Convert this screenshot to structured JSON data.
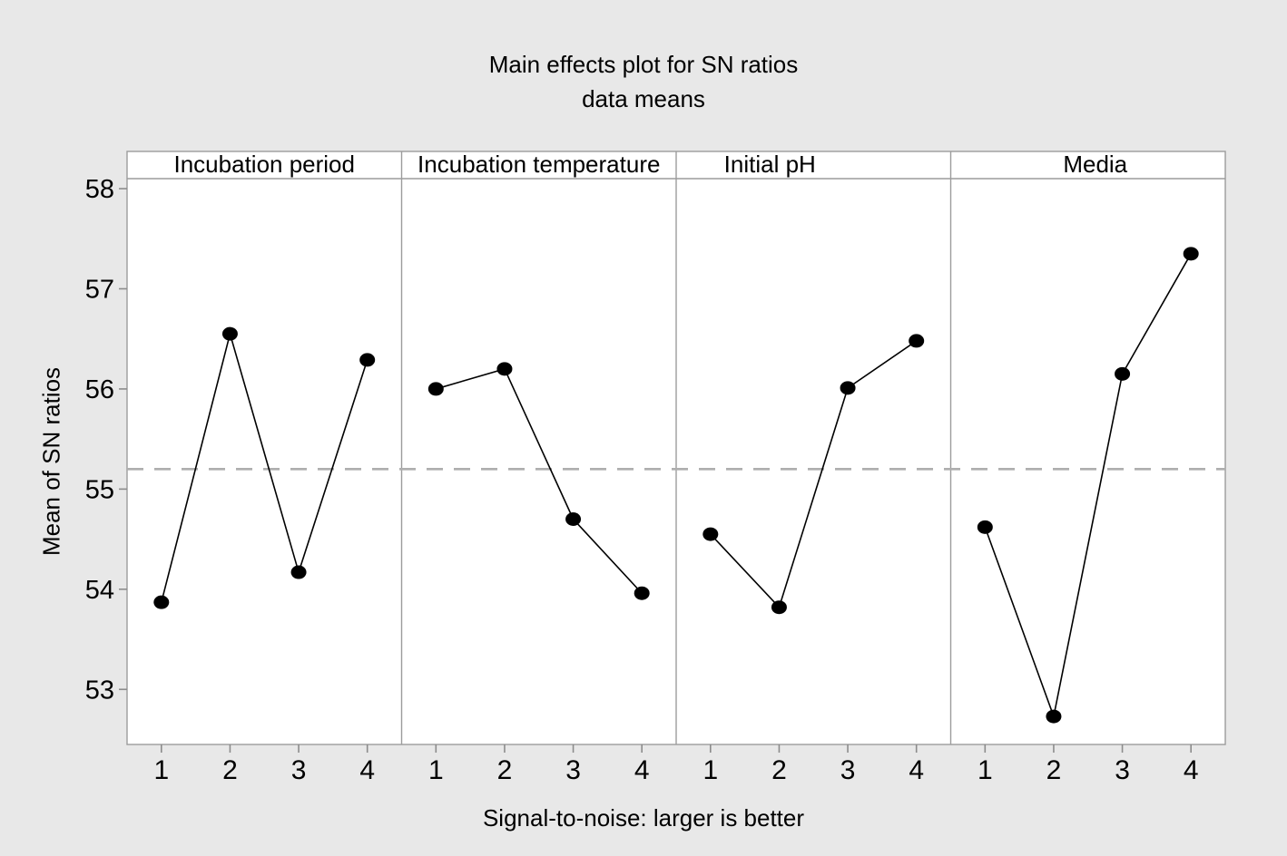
{
  "chart_data": {
    "type": "line",
    "title": "Main effects plot for SN ratios",
    "subtitle": "data means",
    "ylabel": "Mean of SN ratios",
    "xlabel": "Signal-to-noise: larger is better",
    "categories": [
      "1",
      "2",
      "3",
      "4"
    ],
    "yticks": [
      53,
      54,
      55,
      56,
      57,
      58
    ],
    "ylim": [
      52.45,
      58.1
    ],
    "reference_line": 55.2,
    "grid": "off",
    "legend_position": "none",
    "panels": [
      {
        "label": "Incubation period",
        "values": [
          53.87,
          56.55,
          54.17,
          56.29
        ]
      },
      {
        "label": "Incubation temperature",
        "values": [
          56.0,
          56.2,
          54.7,
          53.96
        ]
      },
      {
        "label": "Initial pH",
        "values": [
          54.55,
          53.82,
          56.01,
          56.48
        ]
      },
      {
        "label": "Media",
        "values": [
          54.62,
          52.73,
          56.15,
          57.35
        ]
      }
    ],
    "colors": {
      "background": "#e8e8e8",
      "plot_bg": "#ffffff",
      "frame": "#9c9c9c",
      "tick": "#8c8c8c",
      "reference_line": "#aeaeae",
      "series": "#000000",
      "text": "#000000"
    }
  }
}
